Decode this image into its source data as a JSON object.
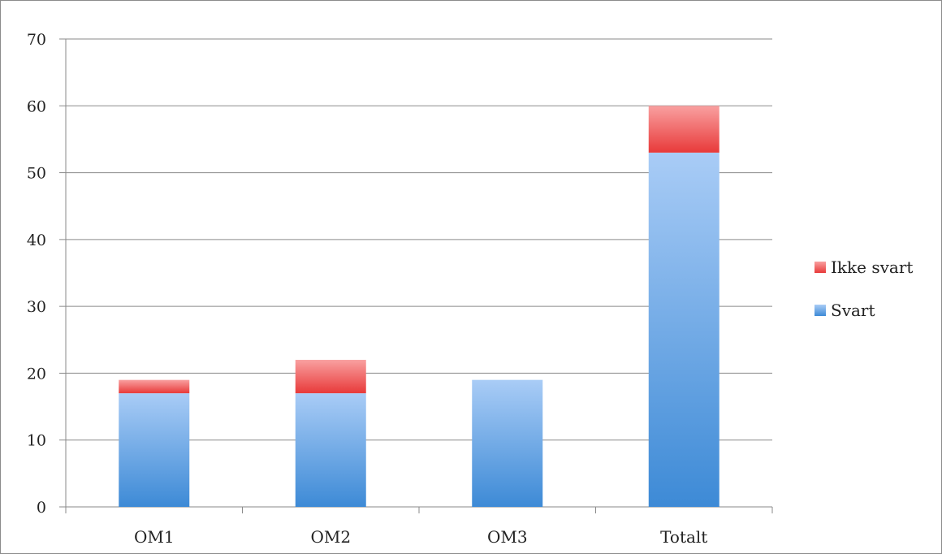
{
  "chart_data": {
    "type": "bar",
    "stacked": true,
    "categories": [
      "OM1",
      "OM2",
      "OM3",
      "Totalt"
    ],
    "series": [
      {
        "name": "Svart",
        "values": [
          17,
          17,
          19,
          53
        ],
        "color": "#5f9ee8"
      },
      {
        "name": "Ikke svart",
        "values": [
          2,
          5,
          0,
          7
        ],
        "color": "#f06060"
      }
    ],
    "yticks": [
      0,
      10,
      20,
      30,
      40,
      50,
      60,
      70
    ],
    "ylim": [
      0,
      70
    ],
    "grid": true,
    "legend": "right",
    "title": "",
    "xlabel": "",
    "ylabel": ""
  }
}
